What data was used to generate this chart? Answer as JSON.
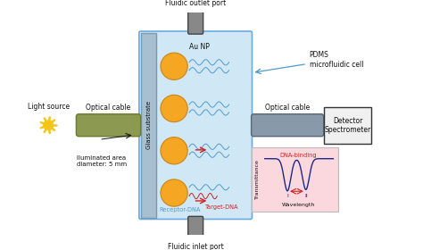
{
  "bg_color": "#ffffff",
  "cell_color": "#d0e8f5",
  "cell_border_color": "#6aabe0",
  "glass_color": "#a8bfcf",
  "glass_border": "#7a9ab0",
  "np_color": "#f5a623",
  "np_border": "#c8861a",
  "cable_left_color": "#8b9a50",
  "cable_left_border": "#6a7a30",
  "cable_right_color": "#8899aa",
  "cable_right_border": "#556677",
  "port_color": "#888888",
  "port_border": "#444444",
  "detector_color": "#f0f0f0",
  "detector_border": "#333333",
  "inset_color": "#fad8de",
  "inset_border": "#bbbbbb",
  "arrow_blue": "#5599cc",
  "wave_blue": "#5599cc",
  "wave_red": "#cc2222",
  "text_color": "#111111",
  "curve_color": "#1a2a8a",
  "labels": {
    "fluidic_outlet": "Fluidic outlet port",
    "fluidic_inlet": "Fluidic inlet port",
    "au_np": "Au NP",
    "pdms": "PDMS\nmicrofluidic cell",
    "glass": "Glass substrate",
    "light_source": "Light source",
    "optical_cable_left": "Optical cable",
    "optical_cable_right": "Optical cable",
    "illuminated": "Iluminated area\ndiameter: 5 mm",
    "receptor": "Receptor-DNA",
    "target": "Target-DNA",
    "detector": "Detector\nSpectrometer",
    "transmittance": "Transmittance",
    "wavelength": "Wavelength",
    "dna_binding": "DNA-binding",
    "roman_i": "I",
    "roman_ii": "II"
  }
}
